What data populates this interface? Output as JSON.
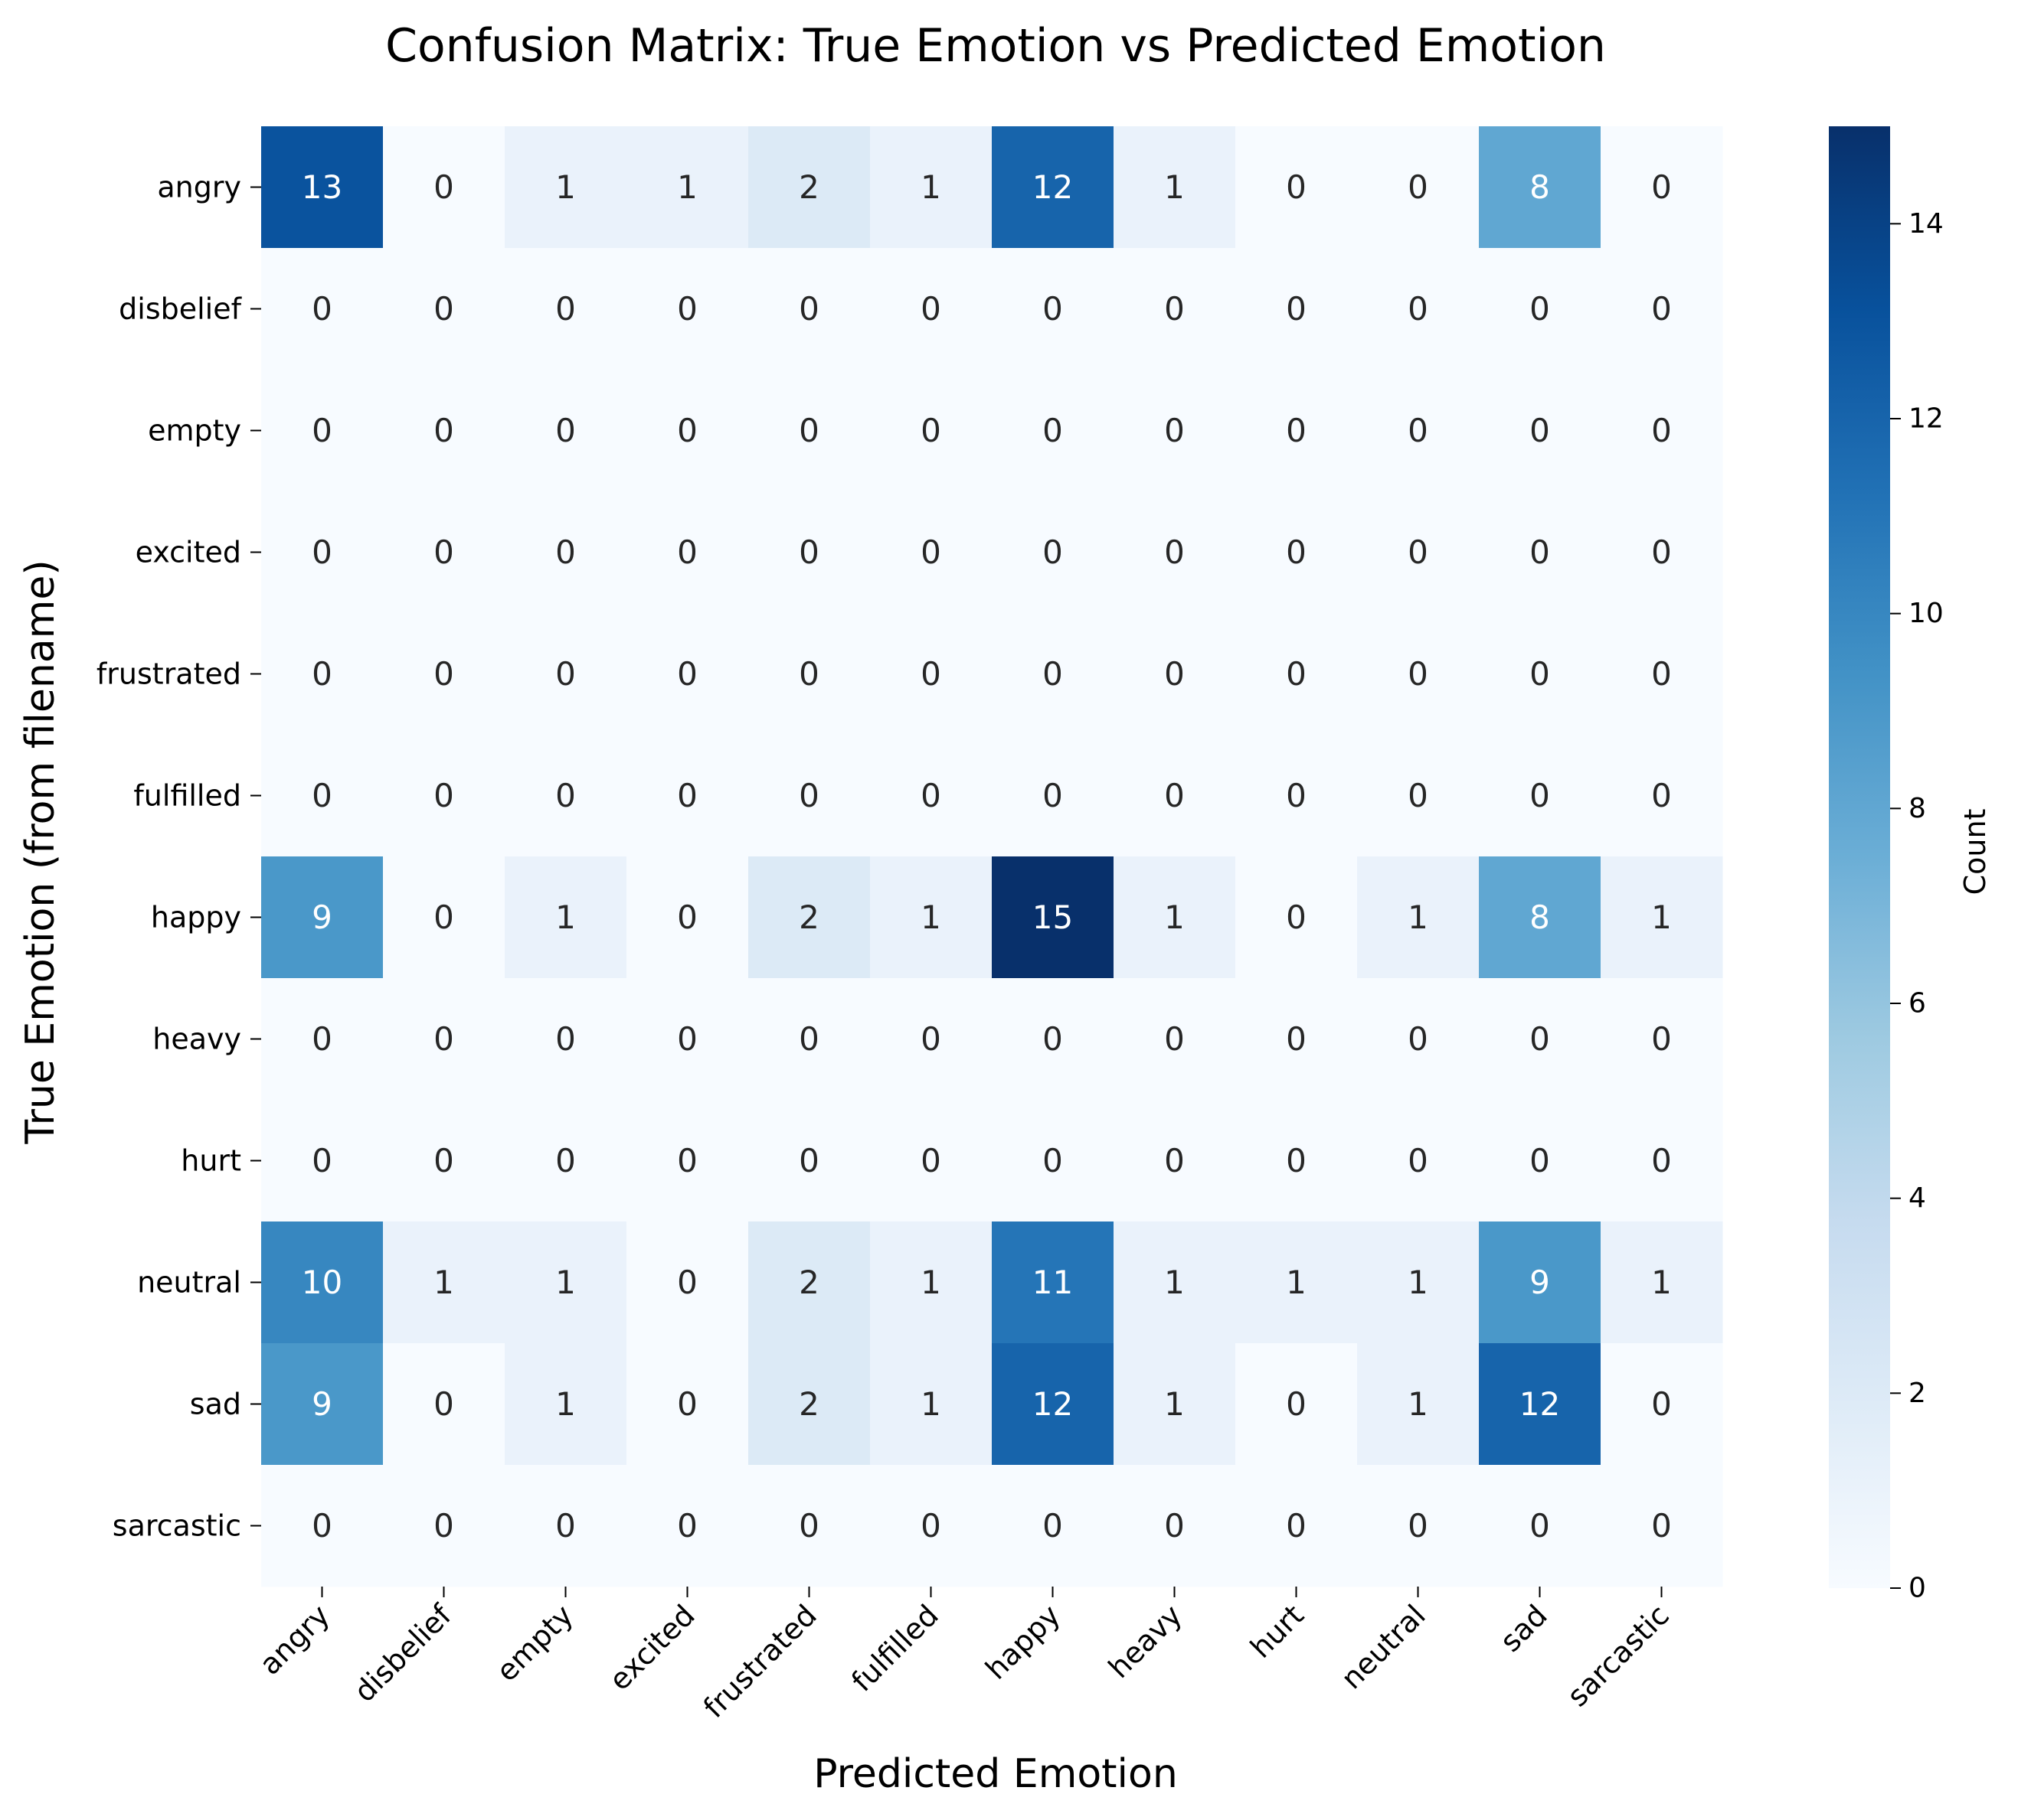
{
  "chart_data": {
    "type": "heatmap",
    "title": "Confusion Matrix: True Emotion vs Predicted Emotion",
    "xlabel": "Predicted Emotion",
    "ylabel": "True Emotion (from filename)",
    "x_categories": [
      "angry",
      "disbelief",
      "empty",
      "excited",
      "frustrated",
      "fulfilled",
      "happy",
      "heavy",
      "hurt",
      "neutral",
      "sad",
      "sarcastic"
    ],
    "y_categories": [
      "angry",
      "disbelief",
      "empty",
      "excited",
      "frustrated",
      "fulfilled",
      "happy",
      "heavy",
      "hurt",
      "neutral",
      "sad",
      "sarcastic"
    ],
    "values": [
      [
        13,
        0,
        1,
        1,
        2,
        1,
        12,
        1,
        0,
        0,
        8,
        0
      ],
      [
        0,
        0,
        0,
        0,
        0,
        0,
        0,
        0,
        0,
        0,
        0,
        0
      ],
      [
        0,
        0,
        0,
        0,
        0,
        0,
        0,
        0,
        0,
        0,
        0,
        0
      ],
      [
        0,
        0,
        0,
        0,
        0,
        0,
        0,
        0,
        0,
        0,
        0,
        0
      ],
      [
        0,
        0,
        0,
        0,
        0,
        0,
        0,
        0,
        0,
        0,
        0,
        0
      ],
      [
        0,
        0,
        0,
        0,
        0,
        0,
        0,
        0,
        0,
        0,
        0,
        0
      ],
      [
        9,
        0,
        1,
        0,
        2,
        1,
        15,
        1,
        0,
        1,
        8,
        1
      ],
      [
        0,
        0,
        0,
        0,
        0,
        0,
        0,
        0,
        0,
        0,
        0,
        0
      ],
      [
        0,
        0,
        0,
        0,
        0,
        0,
        0,
        0,
        0,
        0,
        0,
        0
      ],
      [
        10,
        1,
        1,
        0,
        2,
        1,
        11,
        1,
        1,
        1,
        9,
        1
      ],
      [
        9,
        0,
        1,
        0,
        2,
        1,
        12,
        1,
        0,
        1,
        12,
        0
      ],
      [
        0,
        0,
        0,
        0,
        0,
        0,
        0,
        0,
        0,
        0,
        0,
        0
      ]
    ],
    "colormap": "Blues",
    "color_range": [
      0,
      15
    ],
    "colorbar_label": "Count",
    "colorbar_ticks": [
      0,
      2,
      4,
      6,
      8,
      10,
      12,
      14
    ],
    "colorbar_tick_labels": [
      "0",
      "2",
      "4",
      "6",
      "8",
      "10",
      "12",
      "14"
    ],
    "annotations": true,
    "grid": false
  }
}
